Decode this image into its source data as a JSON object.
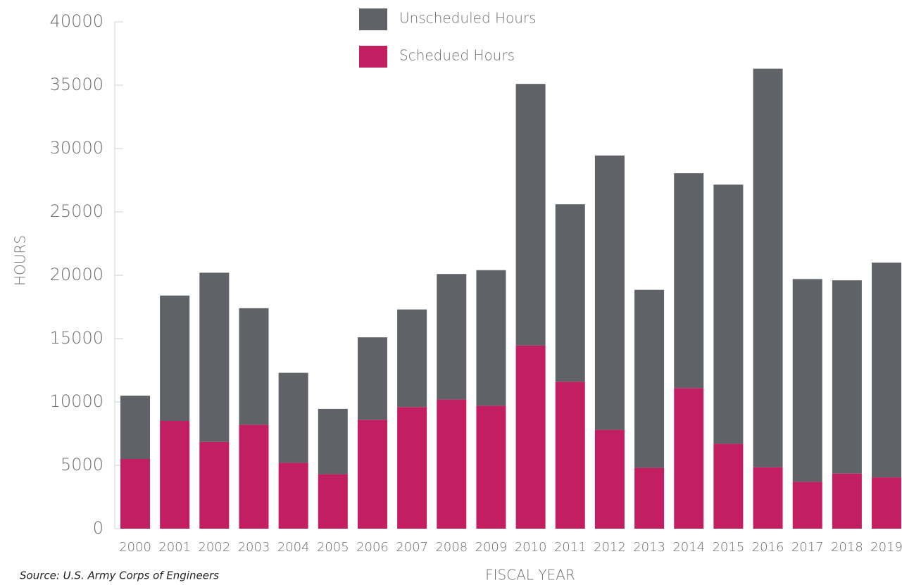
{
  "chart_data": {
    "type": "stacked_bar",
    "categories": [
      "2000",
      "2001",
      "2002",
      "2003",
      "2004",
      "2005",
      "2006",
      "2007",
      "2008",
      "2009",
      "2010",
      "2011",
      "2012",
      "2013",
      "2014",
      "2015",
      "2016",
      "2017",
      "2018",
      "2019"
    ],
    "series": [
      {
        "name": "Unscheduled Hours",
        "color": "#5f6266",
        "values": [
          5000,
          9900,
          13350,
          9200,
          7100,
          5150,
          6500,
          7700,
          9900,
          10700,
          20650,
          14000,
          21650,
          14050,
          16950,
          20450,
          31450,
          16000,
          15250,
          16950
        ]
      },
      {
        "name": "Schedued Hours",
        "color": "#c41e62",
        "values": [
          5500,
          8500,
          6850,
          8200,
          5200,
          4300,
          8600,
          9600,
          10200,
          9700,
          14450,
          11600,
          7800,
          4800,
          11100,
          6700,
          4850,
          3700,
          4350,
          4050
        ]
      }
    ],
    "ylim": [
      0,
      40000
    ],
    "yticks": [
      0,
      5000,
      10000,
      15000,
      20000,
      25000,
      30000,
      35000,
      40000
    ],
    "xlabel": "FISCAL YEAR",
    "ylabel": "HOURS",
    "source": "Source: U.S. Army Corps of Engineers"
  }
}
